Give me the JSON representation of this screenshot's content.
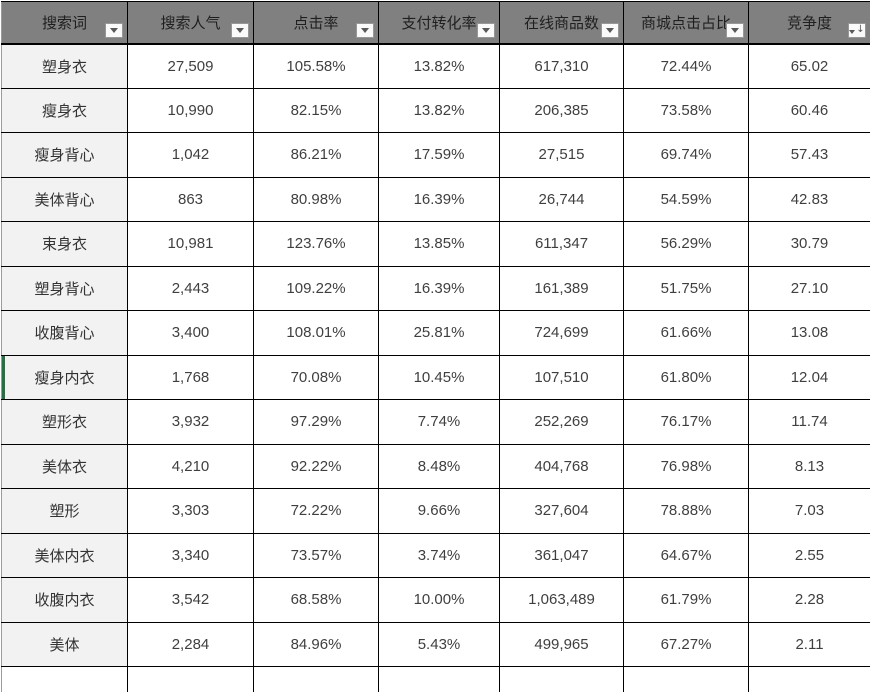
{
  "table": {
    "header": {
      "columns": [
        {
          "key": "search-term",
          "label": "搜索词",
          "icon": "filter-dropdown-icon",
          "sorted": false
        },
        {
          "key": "search-popularity",
          "label": "搜索人气",
          "icon": "filter-dropdown-icon",
          "sorted": false
        },
        {
          "key": "click-rate",
          "label": "点击率",
          "icon": "filter-dropdown-icon",
          "sorted": false
        },
        {
          "key": "payment-conversion-rate",
          "label": "支付转化率",
          "icon": "filter-dropdown-icon",
          "sorted": false
        },
        {
          "key": "online-product-count",
          "label": "在线商品数",
          "icon": "filter-dropdown-icon",
          "sorted": false
        },
        {
          "key": "mall-click-share",
          "label": "商城点击占比",
          "icon": "filter-dropdown-icon",
          "sorted": false
        },
        {
          "key": "competition",
          "label": "竞争度",
          "icon": "filter-dropdown-sorted-desc-icon",
          "sorted": true
        }
      ]
    },
    "rows": [
      [
        "塑身衣",
        "27,509",
        "105.58%",
        "13.82%",
        "617,310",
        "72.44%",
        "65.02"
      ],
      [
        "瘦身衣",
        "10,990",
        "82.15%",
        "13.82%",
        "206,385",
        "73.58%",
        "60.46"
      ],
      [
        "瘦身背心",
        "1,042",
        "86.21%",
        "17.59%",
        "27,515",
        "69.74%",
        "57.43"
      ],
      [
        "美体背心",
        "863",
        "80.98%",
        "16.39%",
        "26,744",
        "54.59%",
        "42.83"
      ],
      [
        "束身衣",
        "10,981",
        "123.76%",
        "13.85%",
        "611,347",
        "56.29%",
        "30.79"
      ],
      [
        "塑身背心",
        "2,443",
        "109.22%",
        "16.39%",
        "161,389",
        "51.75%",
        "27.10"
      ],
      [
        "收腹背心",
        "3,400",
        "108.01%",
        "25.81%",
        "724,699",
        "61.66%",
        "13.08"
      ],
      [
        "瘦身内衣",
        "1,768",
        "70.08%",
        "10.45%",
        "107,510",
        "61.80%",
        "12.04"
      ],
      [
        "塑形衣",
        "3,932",
        "97.29%",
        "7.74%",
        "252,269",
        "76.17%",
        "11.74"
      ],
      [
        "美体衣",
        "4,210",
        "92.22%",
        "8.48%",
        "404,768",
        "76.98%",
        "8.13"
      ],
      [
        "塑形",
        "3,303",
        "72.22%",
        "9.66%",
        "327,604",
        "78.88%",
        "7.03"
      ],
      [
        "美体内衣",
        "3,340",
        "73.57%",
        "3.74%",
        "361,047",
        "64.67%",
        "2.55"
      ],
      [
        "收腹内衣",
        "3,542",
        "68.58%",
        "10.00%",
        "1,063,489",
        "61.79%",
        "2.28"
      ],
      [
        "美体",
        "2,284",
        "84.96%",
        "5.43%",
        "499,965",
        "67.27%",
        "2.11"
      ]
    ],
    "selected_row_index": 7,
    "selected_keyword": "瘦身内衣",
    "sort_indicator": "↓"
  },
  "colors": {
    "header_bg": "#808080",
    "header_text": "#1f1f1f",
    "grid_border": "#000000",
    "keyword_col_bg": "#f2f2f2",
    "cell_bg": "#ffffff",
    "cell_text": "#3f3f3f",
    "selection_green": "#217346",
    "filter_btn_bg": "#fafafa",
    "filter_btn_border": "#979797",
    "filter_arrow": "#595959"
  }
}
